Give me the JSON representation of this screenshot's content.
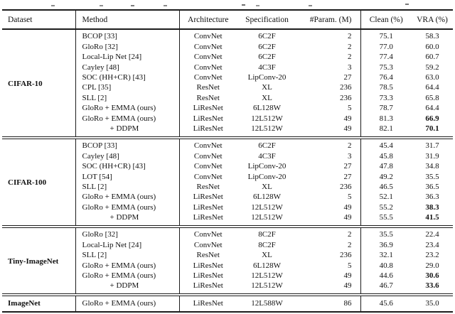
{
  "colors": {
    "background": "#ffffff",
    "text": "#111111",
    "rule": "#1c1c1c"
  },
  "table": {
    "columns": [
      {
        "key": "dataset",
        "label": "Dataset"
      },
      {
        "key": "method",
        "label": "Method"
      },
      {
        "key": "arch",
        "label": "Architecture"
      },
      {
        "key": "spec",
        "label": "Specification"
      },
      {
        "key": "params",
        "label": "#Param. (M)"
      },
      {
        "key": "clean",
        "label": "Clean (%)"
      },
      {
        "key": "vra",
        "label": "VRA (%)"
      }
    ],
    "sections": [
      {
        "dataset": "CIFAR-10",
        "rows": [
          {
            "method": "BCOP [33]",
            "arch": "ConvNet",
            "spec": "6C2F",
            "params": "2",
            "clean": "75.1",
            "vra": "58.3"
          },
          {
            "method": "GloRo [32]",
            "arch": "ConvNet",
            "spec": "6C2F",
            "params": "2",
            "clean": "77.0",
            "vra": "60.0"
          },
          {
            "method": "Local-Lip Net [24]",
            "arch": "ConvNet",
            "spec": "6C2F",
            "params": "2",
            "clean": "77.4",
            "vra": "60.7"
          },
          {
            "method": "Cayley [48]",
            "arch": "ConvNet",
            "spec": "4C3F",
            "params": "3",
            "clean": "75.3",
            "vra": "59.2"
          },
          {
            "method": "SOC (HH+CR) [43]",
            "arch": "ConvNet",
            "spec": "LipConv-20",
            "params": "27",
            "clean": "76.4",
            "vra": "63.0"
          },
          {
            "method": "CPL [35]",
            "arch": "ResNet",
            "spec": "XL",
            "params": "236",
            "clean": "78.5",
            "vra": "64.4"
          },
          {
            "method": "SLL [2]",
            "arch": "ResNet",
            "spec": "XL",
            "params": "236",
            "clean": "73.3",
            "vra": "65.8"
          },
          {
            "method": "GloRo + EMMA (ours)",
            "arch": "LiResNet",
            "spec": "6L128W",
            "params": "5",
            "clean": "78.7",
            "vra": "64.4"
          },
          {
            "method": "GloRo + EMMA (ours)",
            "arch": "LiResNet",
            "spec": "12L512W",
            "params": "49",
            "clean": "81.3",
            "vra": "66.9",
            "vra_bold": true
          },
          {
            "method": "+ DDPM",
            "method_indent": true,
            "arch": "LiResNet",
            "spec": "12L512W",
            "params": "49",
            "clean": "82.1",
            "vra": "70.1",
            "vra_bold": true
          }
        ]
      },
      {
        "dataset": "CIFAR-100",
        "rows": [
          {
            "method": "BCOP [33]",
            "arch": "ConvNet",
            "spec": "6C2F",
            "params": "2",
            "clean": "45.4",
            "vra": "31.7"
          },
          {
            "method": "Cayley [48]",
            "arch": "ConvNet",
            "spec": "4C3F",
            "params": "3",
            "clean": "45.8",
            "vra": "31.9"
          },
          {
            "method": "SOC (HH+CR) [43]",
            "arch": "ConvNet",
            "spec": "LipConv-20",
            "params": "27",
            "clean": "47.8",
            "vra": "34.8"
          },
          {
            "method": "LOT [54]",
            "arch": "ConvNet",
            "spec": "LipConv-20",
            "params": "27",
            "clean": "49.2",
            "vra": "35.5"
          },
          {
            "method": "SLL [2]",
            "arch": "ResNet",
            "spec": "XL",
            "params": "236",
            "clean": "46.5",
            "vra": "36.5"
          },
          {
            "method": "GloRo + EMMA (ours)",
            "arch": "LiResNet",
            "spec": "6L128W",
            "params": "5",
            "clean": "52.1",
            "vra": "36.3"
          },
          {
            "method": "GloRo + EMMA (ours)",
            "arch": "LiResNet",
            "spec": "12L512W",
            "params": "49",
            "clean": "55.2",
            "vra": "38.3",
            "vra_bold": true
          },
          {
            "method": "+ DDPM",
            "method_indent": true,
            "arch": "LiResNet",
            "spec": "12L512W",
            "params": "49",
            "clean": "55.5",
            "vra": "41.5",
            "vra_bold": true
          }
        ]
      },
      {
        "dataset": "Tiny-ImageNet",
        "rows": [
          {
            "method": "GloRo [32]",
            "arch": "ConvNet",
            "spec": "8C2F",
            "params": "2",
            "clean": "35.5",
            "vra": "22.4"
          },
          {
            "method": "Local-Lip Net [24]",
            "arch": "ConvNet",
            "spec": "8C2F",
            "params": "2",
            "clean": "36.9",
            "vra": "23.4"
          },
          {
            "method": "SLL [2]",
            "arch": "ResNet",
            "spec": "XL",
            "params": "236",
            "clean": "32.1",
            "vra": "23.2"
          },
          {
            "method": "GloRo + EMMA (ours)",
            "arch": "LiResNet",
            "spec": "6L128W",
            "params": "5",
            "clean": "40.8",
            "vra": "29.0"
          },
          {
            "method": "GloRo + EMMA (ours)",
            "arch": "LiResNet",
            "spec": "12L512W",
            "params": "49",
            "clean": "44.6",
            "vra": "30.6",
            "vra_bold": true
          },
          {
            "method": "+ DDPM",
            "method_indent": true,
            "arch": "LiResNet",
            "spec": "12L512W",
            "params": "49",
            "clean": "46.7",
            "vra": "33.6",
            "vra_bold": true
          }
        ]
      },
      {
        "dataset": "ImageNet",
        "rows": [
          {
            "method": "GloRo + EMMA (ours)",
            "arch": "LiResNet",
            "spec": "12L588W",
            "params": "86",
            "clean": "45.6",
            "vra": "35.0"
          }
        ]
      }
    ]
  }
}
